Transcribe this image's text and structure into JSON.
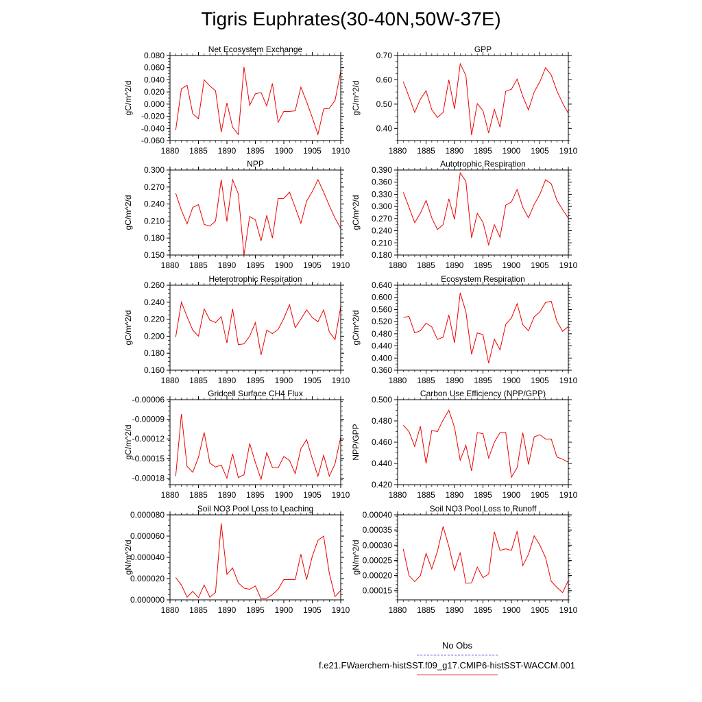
{
  "page": {
    "title": "Tigris Euphrates(30-40N,50W-37E)"
  },
  "legend": {
    "entries": [
      {
        "label": "No Obs",
        "color": "#3333cc",
        "style": "dashed"
      },
      {
        "label": "f.e21.FWaerchem-histSST.f09_g17.CMIP6-histSST-WACCM.001",
        "color": "#ee0000",
        "style": "solid"
      }
    ]
  },
  "chart_data": [
    {
      "type": "line",
      "title": "Net Ecosystem Exchange",
      "ylabel": "gC/m^2/d",
      "xlim": [
        1880,
        1910
      ],
      "ylim": [
        -0.06,
        0.08
      ],
      "yticks": [
        "-0.060",
        "-0.040",
        "-0.020",
        "0.000",
        "0.020",
        "0.040",
        "0.060",
        "0.080"
      ],
      "xticks": [
        "1880",
        "1885",
        "1890",
        "1895",
        "1900",
        "1905",
        "1910"
      ],
      "x": [
        1881,
        1882,
        1883,
        1884,
        1885,
        1886,
        1887,
        1888,
        1889,
        1890,
        1891,
        1892,
        1893,
        1894,
        1895,
        1896,
        1897,
        1898,
        1899,
        1900,
        1901,
        1902,
        1903,
        1904,
        1905,
        1906,
        1907,
        1908,
        1909,
        1910
      ],
      "series": [
        {
          "color": "#ee0000",
          "values": [
            -0.043,
            0.025,
            0.031,
            -0.016,
            -0.024,
            0.04,
            0.03,
            0.022,
            -0.046,
            0.002,
            -0.038,
            -0.05,
            0.061,
            -0.002,
            0.017,
            0.019,
            -0.003,
            0.034,
            -0.03,
            -0.012,
            -0.012,
            -0.011,
            0.028,
            0.004,
            -0.022,
            -0.05,
            -0.008,
            -0.007,
            0.006,
            0.054
          ]
        }
      ]
    },
    {
      "type": "line",
      "title": "GPP",
      "ylabel": "gC/m^2/d",
      "xlim": [
        1880,
        1910
      ],
      "ylim": [
        0.35,
        0.7
      ],
      "yticks": [
        "0.40",
        "0.50",
        "0.60",
        "0.70"
      ],
      "xticks": [
        "1880",
        "1885",
        "1890",
        "1895",
        "1900",
        "1905",
        "1910"
      ],
      "x": [
        1881,
        1882,
        1883,
        1884,
        1885,
        1886,
        1887,
        1888,
        1889,
        1890,
        1891,
        1892,
        1893,
        1894,
        1895,
        1896,
        1897,
        1898,
        1899,
        1900,
        1901,
        1902,
        1903,
        1904,
        1905,
        1906,
        1907,
        1908,
        1909,
        1910
      ],
      "series": [
        {
          "color": "#ee0000",
          "values": [
            0.592,
            0.53,
            0.466,
            0.52,
            0.555,
            0.477,
            0.445,
            0.466,
            0.6,
            0.48,
            0.666,
            0.618,
            0.372,
            0.502,
            0.473,
            0.381,
            0.478,
            0.405,
            0.553,
            0.561,
            0.603,
            0.532,
            0.476,
            0.55,
            0.592,
            0.65,
            0.62,
            0.554,
            0.504,
            0.462
          ]
        }
      ]
    },
    {
      "type": "line",
      "title": "NPP",
      "ylabel": "gC/m^2/d",
      "xlim": [
        1880,
        1910
      ],
      "ylim": [
        0.15,
        0.3
      ],
      "yticks": [
        "0.150",
        "0.180",
        "0.210",
        "0.240",
        "0.270",
        "0.300"
      ],
      "xticks": [
        "1880",
        "1885",
        "1890",
        "1895",
        "1900",
        "1905",
        "1910"
      ],
      "x": [
        1881,
        1882,
        1883,
        1884,
        1885,
        1886,
        1887,
        1888,
        1889,
        1890,
        1891,
        1892,
        1893,
        1894,
        1895,
        1896,
        1897,
        1898,
        1899,
        1900,
        1901,
        1902,
        1903,
        1904,
        1905,
        1906,
        1907,
        1908,
        1909,
        1910
      ],
      "series": [
        {
          "color": "#ee0000",
          "values": [
            0.259,
            0.229,
            0.205,
            0.234,
            0.239,
            0.204,
            0.201,
            0.21,
            0.283,
            0.209,
            0.283,
            0.258,
            0.15,
            0.218,
            0.212,
            0.175,
            0.22,
            0.18,
            0.25,
            0.25,
            0.261,
            0.234,
            0.206,
            0.245,
            0.262,
            0.283,
            0.261,
            0.237,
            0.215,
            0.197
          ]
        }
      ]
    },
    {
      "type": "line",
      "title": "Autotrophic Respiration",
      "ylabel": "gC/m^2/d",
      "xlim": [
        1880,
        1910
      ],
      "ylim": [
        0.18,
        0.39
      ],
      "yticks": [
        "0.180",
        "0.210",
        "0.240",
        "0.270",
        "0.300",
        "0.330",
        "0.360",
        "0.390"
      ],
      "xticks": [
        "1880",
        "1885",
        "1890",
        "1895",
        "1900",
        "1905",
        "1910"
      ],
      "x": [
        1881,
        1882,
        1883,
        1884,
        1885,
        1886,
        1887,
        1888,
        1889,
        1890,
        1891,
        1892,
        1893,
        1894,
        1895,
        1896,
        1897,
        1898,
        1899,
        1900,
        1901,
        1902,
        1903,
        1904,
        1905,
        1906,
        1907,
        1908,
        1909,
        1910
      ],
      "series": [
        {
          "color": "#ee0000",
          "values": [
            0.335,
            0.298,
            0.26,
            0.283,
            0.315,
            0.272,
            0.243,
            0.255,
            0.319,
            0.268,
            0.383,
            0.362,
            0.222,
            0.283,
            0.261,
            0.205,
            0.255,
            0.224,
            0.303,
            0.311,
            0.342,
            0.298,
            0.272,
            0.305,
            0.33,
            0.366,
            0.356,
            0.315,
            0.292,
            0.271
          ]
        }
      ]
    },
    {
      "type": "line",
      "title": "Heterotrophic Respiration",
      "ylabel": "gC/m^2/d",
      "xlim": [
        1880,
        1910
      ],
      "ylim": [
        0.16,
        0.26
      ],
      "yticks": [
        "0.160",
        "0.180",
        "0.200",
        "0.220",
        "0.240",
        "0.260"
      ],
      "xticks": [
        "1880",
        "1885",
        "1890",
        "1895",
        "1900",
        "1905",
        "1910"
      ],
      "x": [
        1881,
        1882,
        1883,
        1884,
        1885,
        1886,
        1887,
        1888,
        1889,
        1890,
        1891,
        1892,
        1893,
        1894,
        1895,
        1896,
        1897,
        1898,
        1899,
        1900,
        1901,
        1902,
        1903,
        1904,
        1905,
        1906,
        1907,
        1908,
        1909,
        1910
      ],
      "series": [
        {
          "color": "#ee0000",
          "values": [
            0.199,
            0.24,
            0.223,
            0.207,
            0.2,
            0.232,
            0.219,
            0.216,
            0.223,
            0.192,
            0.232,
            0.19,
            0.191,
            0.2,
            0.216,
            0.178,
            0.207,
            0.203,
            0.208,
            0.221,
            0.237,
            0.21,
            0.22,
            0.231,
            0.222,
            0.217,
            0.231,
            0.205,
            0.196,
            0.235
          ]
        }
      ]
    },
    {
      "type": "line",
      "title": "Ecosystem Respiration",
      "ylabel": "gC/m^2/d",
      "xlim": [
        1880,
        1910
      ],
      "ylim": [
        0.36,
        0.64
      ],
      "yticks": [
        "0.360",
        "0.400",
        "0.440",
        "0.480",
        "0.520",
        "0.560",
        "0.600",
        "0.640"
      ],
      "xticks": [
        "1880",
        "1885",
        "1890",
        "1895",
        "1900",
        "1905",
        "1910"
      ],
      "x": [
        1881,
        1882,
        1883,
        1884,
        1885,
        1886,
        1887,
        1888,
        1889,
        1890,
        1891,
        1892,
        1893,
        1894,
        1895,
        1896,
        1897,
        1898,
        1899,
        1900,
        1901,
        1902,
        1903,
        1904,
        1905,
        1906,
        1907,
        1908,
        1909,
        1910
      ],
      "series": [
        {
          "color": "#ee0000",
          "values": [
            0.534,
            0.537,
            0.483,
            0.49,
            0.515,
            0.503,
            0.461,
            0.469,
            0.542,
            0.45,
            0.615,
            0.552,
            0.412,
            0.483,
            0.477,
            0.383,
            0.462,
            0.427,
            0.511,
            0.532,
            0.579,
            0.51,
            0.49,
            0.536,
            0.552,
            0.583,
            0.587,
            0.521,
            0.488,
            0.504
          ]
        }
      ]
    },
    {
      "type": "line",
      "title": "Gridcell Surface CH4 Flux",
      "ylabel": "gC/m^2/d",
      "xlim": [
        1880,
        1910
      ],
      "ylim": [
        -0.00019,
        -6e-05
      ],
      "yticks": [
        "-0.00018",
        "-0.00015",
        "-0.00012",
        "-0.00009",
        "-0.00006"
      ],
      "xticks": [
        "1880",
        "1885",
        "1890",
        "1895",
        "1900",
        "1905",
        "1910"
      ],
      "x": [
        1881,
        1882,
        1883,
        1884,
        1885,
        1886,
        1887,
        1888,
        1889,
        1890,
        1891,
        1892,
        1893,
        1894,
        1895,
        1896,
        1897,
        1898,
        1899,
        1900,
        1901,
        1902,
        1903,
        1904,
        1905,
        1906,
        1907,
        1908,
        1909,
        1910
      ],
      "series": [
        {
          "color": "#ee0000",
          "values": [
            -0.000177,
            -8.2e-05,
            -0.000162,
            -0.000171,
            -0.000148,
            -0.00011,
            -0.000157,
            -0.000163,
            -0.00016,
            -0.00018,
            -0.000143,
            -0.000179,
            -0.000175,
            -0.000127,
            -0.000156,
            -0.000182,
            -0.000141,
            -0.000164,
            -0.000164,
            -0.000147,
            -0.000153,
            -0.000173,
            -0.000135,
            -0.000121,
            -0.00015,
            -0.000177,
            -0.000145,
            -0.000177,
            -0.000158,
            -0.000117
          ]
        }
      ]
    },
    {
      "type": "line",
      "title": "Carbon Use Efficiency (NPP/GPP)",
      "ylabel": "NPP/GPP",
      "xlim": [
        1880,
        1910
      ],
      "ylim": [
        0.42,
        0.5
      ],
      "yticks": [
        "0.420",
        "0.440",
        "0.460",
        "0.480",
        "0.500"
      ],
      "xticks": [
        "1880",
        "1885",
        "1890",
        "1895",
        "1900",
        "1905",
        "1910"
      ],
      "x": [
        1881,
        1882,
        1883,
        1884,
        1885,
        1886,
        1887,
        1888,
        1889,
        1890,
        1891,
        1892,
        1893,
        1894,
        1895,
        1896,
        1897,
        1898,
        1899,
        1900,
        1901,
        1902,
        1903,
        1904,
        1905,
        1906,
        1907,
        1908,
        1909,
        1910
      ],
      "series": [
        {
          "color": "#ee0000",
          "values": [
            0.476,
            0.47,
            0.456,
            0.475,
            0.44,
            0.471,
            0.47,
            0.481,
            0.49,
            0.474,
            0.443,
            0.457,
            0.433,
            0.469,
            0.468,
            0.445,
            0.46,
            0.469,
            0.469,
            0.427,
            0.436,
            0.469,
            0.439,
            0.465,
            0.467,
            0.463,
            0.463,
            0.446,
            0.444,
            0.441
          ]
        }
      ]
    },
    {
      "type": "line",
      "title": "Soil NO3 Pool Loss to Leaching",
      "ylabel": "gN/m^2/d",
      "xlim": [
        1880,
        1910
      ],
      "ylim": [
        0.0,
        8e-05
      ],
      "yticks": [
        "0.000000",
        "0.000020",
        "0.000040",
        "0.000060",
        "0.000080"
      ],
      "xticks": [
        "1880",
        "1885",
        "1890",
        "1895",
        "1900",
        "1905",
        "1910"
      ],
      "x": [
        1881,
        1882,
        1883,
        1884,
        1885,
        1886,
        1887,
        1888,
        1889,
        1890,
        1891,
        1892,
        1893,
        1894,
        1895,
        1896,
        1897,
        1898,
        1899,
        1900,
        1901,
        1902,
        1903,
        1904,
        1905,
        1906,
        1907,
        1908,
        1909,
        1910
      ],
      "series": [
        {
          "color": "#ee0000",
          "values": [
            2.1e-05,
            1.4e-05,
            2.5e-06,
            8e-06,
            2e-06,
            1.4e-05,
            2.5e-06,
            7e-06,
            7.2e-05,
            2.4e-05,
            3e-05,
            1.6e-05,
            1.1e-05,
            1e-05,
            1.3e-05,
            1e-06,
            1.5e-06,
            5e-06,
            1e-05,
            1.9e-05,
            1.9e-05,
            1.9e-05,
            4.3e-05,
            1.9e-05,
            4.1e-05,
            5.6e-05,
            6e-05,
            2.5e-05,
            3e-06,
            9e-06
          ]
        }
      ]
    },
    {
      "type": "line",
      "title": "Soil NO3 Pool Loss to Runoff",
      "ylabel": "gN/m^2/d",
      "xlim": [
        1880,
        1910
      ],
      "ylim": [
        0.00012,
        0.0004
      ],
      "yticks": [
        "0.00015",
        "0.00020",
        "0.00025",
        "0.00030",
        "0.00035",
        "0.00040"
      ],
      "xticks": [
        "1880",
        "1885",
        "1890",
        "1895",
        "1900",
        "1905",
        "1910"
      ],
      "x": [
        1881,
        1882,
        1883,
        1884,
        1885,
        1886,
        1887,
        1888,
        1889,
        1890,
        1891,
        1892,
        1893,
        1894,
        1895,
        1896,
        1897,
        1898,
        1899,
        1900,
        1901,
        1902,
        1903,
        1904,
        1905,
        1906,
        1907,
        1908,
        1909,
        1910
      ],
      "series": [
        {
          "color": "#ee0000",
          "values": [
            0.000287,
            0.0002,
            0.00018,
            0.0002,
            0.000273,
            0.000222,
            0.00028,
            0.000362,
            0.000296,
            0.000217,
            0.000276,
            0.000175,
            0.000176,
            0.000228,
            0.000193,
            0.000205,
            0.000344,
            0.000283,
            0.000288,
            0.000283,
            0.000346,
            0.000233,
            0.00027,
            0.000331,
            0.0003,
            0.000259,
            0.000181,
            0.000161,
            0.000144,
            0.000184
          ]
        }
      ]
    }
  ]
}
